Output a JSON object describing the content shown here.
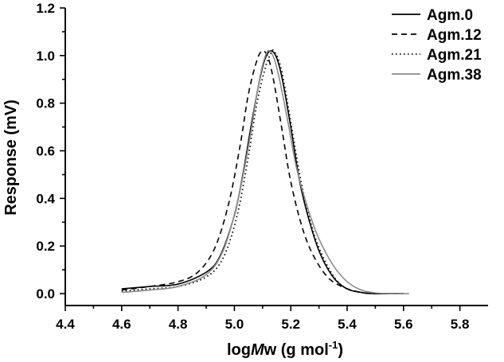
{
  "chart_data": {
    "type": "line",
    "xlabel": {
      "prefix": "log",
      "italic": "M",
      "rest": "w (g mol",
      "sup": "-1",
      "close": ")"
    },
    "ylabel": "Response (mV)",
    "xlim": [
      4.4,
      5.9
    ],
    "ylim": [
      -0.05,
      1.2
    ],
    "xticks": [
      4.4,
      4.6,
      4.8,
      5.0,
      5.2,
      5.4,
      5.6,
      5.8
    ],
    "yticks": [
      0.0,
      0.2,
      0.4,
      0.6,
      0.8,
      1.0,
      1.2
    ],
    "legend_position": "top-right",
    "series": [
      {
        "name": "Agm.0",
        "color": "#000000",
        "dash": "",
        "x": [
          4.6,
          4.7,
          4.8,
          4.9,
          4.95,
          5.0,
          5.03,
          5.06,
          5.09,
          5.11,
          5.13,
          5.15,
          5.17,
          5.2,
          5.23,
          5.26,
          5.3,
          5.35,
          5.4,
          5.45,
          5.5,
          5.55,
          5.6
        ],
        "y": [
          0.02,
          0.03,
          0.04,
          0.09,
          0.16,
          0.33,
          0.5,
          0.71,
          0.9,
          0.99,
          1.02,
          0.99,
          0.9,
          0.7,
          0.48,
          0.33,
          0.18,
          0.07,
          0.02,
          0.005,
          0.0,
          0.0,
          0.0
        ]
      },
      {
        "name": "Agm.12",
        "color": "#000000",
        "dash": "7,5",
        "x": [
          4.6,
          4.7,
          4.8,
          4.87,
          4.93,
          4.98,
          5.02,
          5.05,
          5.08,
          5.1,
          5.12,
          5.14,
          5.17,
          5.2,
          5.24,
          5.28,
          5.33,
          5.38,
          5.43,
          5.48,
          5.55,
          5.6
        ],
        "y": [
          0.015,
          0.03,
          0.05,
          0.09,
          0.19,
          0.38,
          0.62,
          0.84,
          0.98,
          1.02,
          0.99,
          0.89,
          0.68,
          0.47,
          0.28,
          0.16,
          0.07,
          0.03,
          0.01,
          0.0,
          0.0,
          0.0
        ]
      },
      {
        "name": "Agm.21",
        "color": "#000000",
        "dash": "1.5,3.5",
        "x": [
          4.6,
          4.7,
          4.8,
          4.9,
          4.96,
          5.01,
          5.05,
          5.08,
          5.11,
          5.13,
          5.14,
          5.16,
          5.18,
          5.21,
          5.24,
          5.28,
          5.32,
          5.36,
          5.4,
          5.45,
          5.5,
          5.6
        ],
        "y": [
          0.01,
          0.02,
          0.03,
          0.07,
          0.15,
          0.33,
          0.58,
          0.8,
          0.95,
          1.01,
          1.02,
          0.97,
          0.86,
          0.65,
          0.45,
          0.26,
          0.14,
          0.06,
          0.02,
          0.005,
          0.0,
          0.0
        ]
      },
      {
        "name": "Agm.38",
        "color": "#8c8c8c",
        "dash": "",
        "x": [
          4.6,
          4.7,
          4.8,
          4.9,
          4.96,
          5.01,
          5.05,
          5.08,
          5.1,
          5.12,
          5.14,
          5.16,
          5.19,
          5.22,
          5.26,
          5.3,
          5.35,
          5.4,
          5.45,
          5.5,
          5.55,
          5.62
        ],
        "y": [
          0.005,
          0.015,
          0.03,
          0.08,
          0.18,
          0.38,
          0.62,
          0.84,
          0.96,
          1.02,
          0.99,
          0.9,
          0.72,
          0.53,
          0.36,
          0.23,
          0.12,
          0.05,
          0.015,
          0.003,
          0.0,
          0.0
        ]
      }
    ]
  }
}
